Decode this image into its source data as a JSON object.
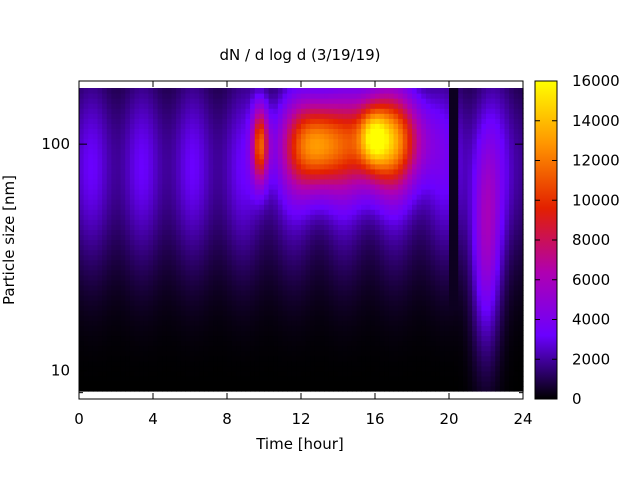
{
  "chart_data": {
    "type": "heatmap",
    "title": "dN / d log d (3/19/19)",
    "xlabel": "Time [hour]",
    "ylabel": "Particle size [nm]",
    "x_ticks": [
      0,
      4,
      8,
      12,
      16,
      20,
      24
    ],
    "xlim": [
      0,
      24
    ],
    "y_scale": "log",
    "y_ticks": [
      10,
      100
    ],
    "ylim": [
      7.5,
      190
    ],
    "colorbar": {
      "ticks": [
        0,
        2000,
        4000,
        6000,
        8000,
        10000,
        12000,
        14000,
        16000
      ],
      "range": [
        0,
        16000
      ],
      "colormap": [
        "#000000",
        "#6a00ff",
        "#b000b0",
        "#e32000",
        "#ff9400",
        "#ffff00"
      ]
    },
    "features": [
      {
        "t_center": 9.8,
        "t_width": 0.45,
        "d_center": 100,
        "d_width_log": 0.17,
        "value": 9000
      },
      {
        "t_center": 12.8,
        "t_width": 1.7,
        "d_center": 100,
        "d_width_log": 0.2,
        "value": 10800
      },
      {
        "t_center": 16.5,
        "t_width": 2.0,
        "d_center": 105,
        "d_width_log": 0.21,
        "value": 11500
      },
      {
        "t_center": 15.9,
        "t_width": 0.7,
        "d_center": 108,
        "d_width_log": 0.12,
        "value": 4500
      },
      {
        "t_center": 22.0,
        "t_width": 0.75,
        "d_center": 35,
        "d_width_log": 0.45,
        "value": 4200
      }
    ],
    "background_level": 3200,
    "gap": {
      "t_start": 20.0,
      "t_end": 20.6,
      "value": 400
    }
  }
}
